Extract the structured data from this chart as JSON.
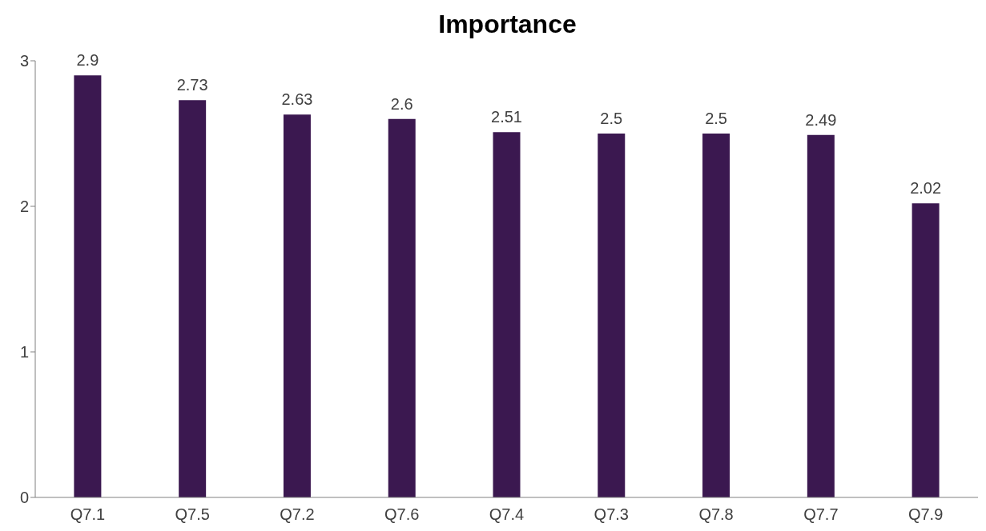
{
  "chart_data": {
    "type": "bar",
    "title": "Importance",
    "categories": [
      "Q7.1",
      "Q7.5",
      "Q7.2",
      "Q7.6",
      "Q7.4",
      "Q7.3",
      "Q7.8",
      "Q7.7",
      "Q7.9"
    ],
    "values": [
      2.9,
      2.73,
      2.63,
      2.6,
      2.51,
      2.5,
      2.5,
      2.49,
      2.02
    ],
    "color": "#3b1850",
    "ylim": [
      0,
      3
    ],
    "yticks": [
      0,
      1,
      2,
      3
    ],
    "grid": false,
    "data_labels": true
  }
}
